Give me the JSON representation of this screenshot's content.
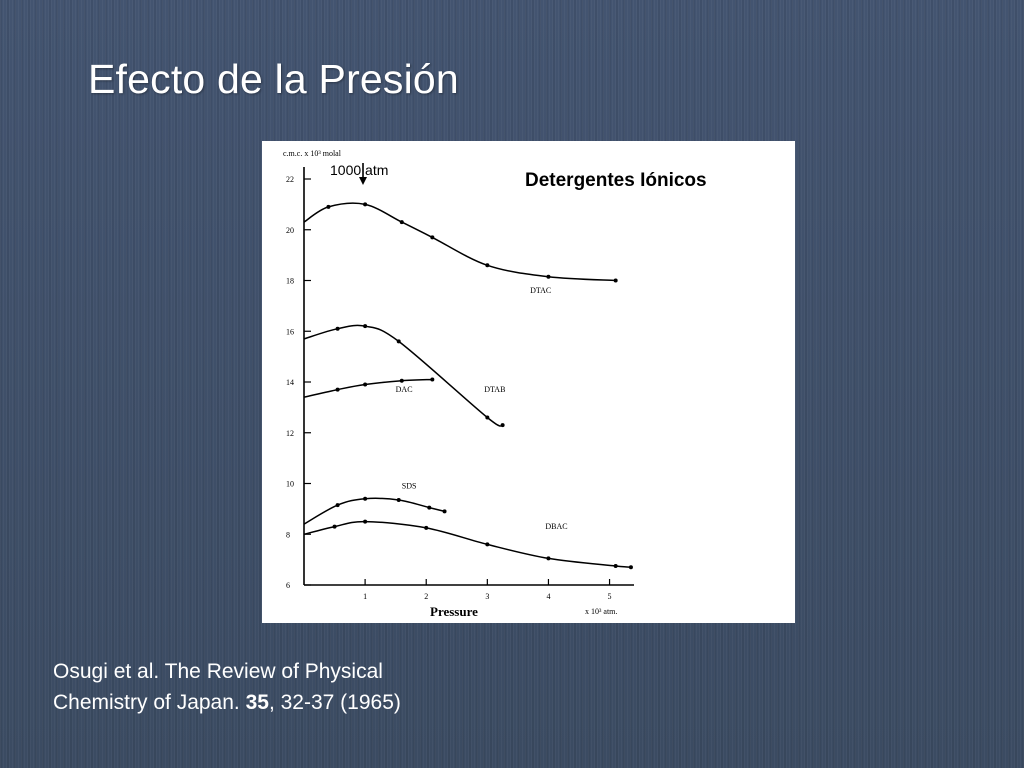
{
  "slide": {
    "title": "Efecto de la Presión",
    "citation": {
      "line1": "Osugi et al. The Review of Physical",
      "line2_prefix": "Chemistry of Japan. ",
      "line2_bold": "35",
      "line2_suffix": ", 32-37 (1965)"
    }
  },
  "chart_data": {
    "type": "line",
    "title": "Detergentes Iónicos",
    "ylabel": "c.m.c. x 10³ molal",
    "xlabel": "Pressure",
    "xunit": "x 10³ atm.",
    "annotation": "1000 atm",
    "xlim": [
      0,
      5.4
    ],
    "ylim": [
      6,
      22
    ],
    "x_ticks": [
      1,
      2,
      3,
      4,
      5
    ],
    "y_ticks": [
      6,
      8,
      10,
      12,
      14,
      16,
      18,
      20,
      22
    ],
    "marker_color": "#000000",
    "series": [
      {
        "name": "DTAC",
        "label_at": [
          3.7,
          17.5
        ],
        "points": [
          [
            0,
            20.3
          ],
          [
            0.4,
            20.9
          ],
          [
            1,
            21.0
          ],
          [
            1.6,
            20.3
          ],
          [
            2.1,
            19.7
          ],
          [
            3,
            18.6
          ],
          [
            4,
            18.15
          ],
          [
            5.1,
            18.0
          ]
        ]
      },
      {
        "name": "DTAB",
        "label_at": [
          2.95,
          13.6
        ],
        "points": [
          [
            0,
            15.7
          ],
          [
            0.55,
            16.1
          ],
          [
            1,
            16.2
          ],
          [
            1.55,
            15.6
          ],
          [
            3,
            12.6
          ],
          [
            3.25,
            12.3
          ]
        ]
      },
      {
        "name": "DAC",
        "label_at": [
          1.5,
          13.6
        ],
        "points": [
          [
            0,
            13.4
          ],
          [
            0.55,
            13.7
          ],
          [
            1,
            13.9
          ],
          [
            1.6,
            14.05
          ],
          [
            2.1,
            14.1
          ]
        ]
      },
      {
        "name": "SDS",
        "label_at": [
          1.6,
          9.8
        ],
        "points": [
          [
            0,
            8.4
          ],
          [
            0.55,
            9.15
          ],
          [
            1,
            9.4
          ],
          [
            1.55,
            9.35
          ],
          [
            2.05,
            9.05
          ],
          [
            2.3,
            8.9
          ]
        ]
      },
      {
        "name": "DBAC",
        "label_at": [
          3.95,
          8.2
        ],
        "points": [
          [
            0,
            8.0
          ],
          [
            0.5,
            8.3
          ],
          [
            1,
            8.5
          ],
          [
            2,
            8.25
          ],
          [
            3,
            7.6
          ],
          [
            4,
            7.05
          ],
          [
            5.1,
            6.75
          ],
          [
            5.35,
            6.7
          ]
        ]
      }
    ]
  }
}
